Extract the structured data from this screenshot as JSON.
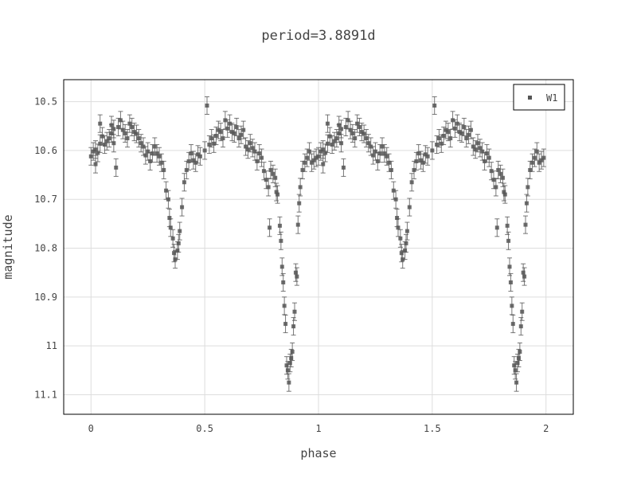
{
  "chart_data": {
    "type": "scatter",
    "title": "period=3.8891d",
    "xlabel": "phase",
    "ylabel": "magnitude",
    "xlim": [
      -0.12,
      2.12
    ],
    "ylim": [
      11.14,
      10.455
    ],
    "y_reversed": true,
    "grid": true,
    "legend_position": "top-right",
    "x_ticks": [
      0,
      0.5,
      1,
      1.5,
      2
    ],
    "x_tick_labels": [
      "0",
      "0.5",
      "1",
      "1.5",
      "2"
    ],
    "y_ticks": [
      10.5,
      10.6,
      10.7,
      10.8,
      10.9,
      11,
      11.1
    ],
    "y_tick_labels": [
      "10.5",
      "10.6",
      "10.7",
      "10.8",
      "10.9",
      "11",
      "11.1"
    ],
    "marker_color": "#555555",
    "series": [
      {
        "name": "W1",
        "error": 0.018,
        "x_repeat_offset": 1,
        "points": [
          [
            0.0,
            10.612
          ],
          [
            0.01,
            10.602
          ],
          [
            0.02,
            10.598
          ],
          [
            0.02,
            10.628
          ],
          [
            0.03,
            10.605
          ],
          [
            0.04,
            10.586
          ],
          [
            0.04,
            10.545
          ],
          [
            0.05,
            10.571
          ],
          [
            0.06,
            10.588
          ],
          [
            0.07,
            10.581
          ],
          [
            0.08,
            10.575
          ],
          [
            0.09,
            10.565
          ],
          [
            0.09,
            10.548
          ],
          [
            0.1,
            10.556
          ],
          [
            0.1,
            10.585
          ],
          [
            0.11,
            10.635
          ],
          [
            0.12,
            10.552
          ],
          [
            0.13,
            10.538
          ],
          [
            0.14,
            10.558
          ],
          [
            0.15,
            10.565
          ],
          [
            0.16,
            10.575
          ],
          [
            0.17,
            10.545
          ],
          [
            0.18,
            10.552
          ],
          [
            0.19,
            10.562
          ],
          [
            0.2,
            10.566
          ],
          [
            0.21,
            10.575
          ],
          [
            0.22,
            10.585
          ],
          [
            0.23,
            10.592
          ],
          [
            0.24,
            10.61
          ],
          [
            0.25,
            10.602
          ],
          [
            0.26,
            10.622
          ],
          [
            0.27,
            10.606
          ],
          [
            0.28,
            10.592
          ],
          [
            0.29,
            10.606
          ],
          [
            0.3,
            10.612
          ],
          [
            0.31,
            10.625
          ],
          [
            0.32,
            10.64
          ],
          [
            0.33,
            10.682
          ],
          [
            0.34,
            10.7
          ],
          [
            0.345,
            10.738
          ],
          [
            0.35,
            10.758
          ],
          [
            0.36,
            10.78
          ],
          [
            0.365,
            10.81
          ],
          [
            0.37,
            10.823
          ],
          [
            0.38,
            10.805
          ],
          [
            0.385,
            10.79
          ],
          [
            0.39,
            10.765
          ],
          [
            0.4,
            10.716
          ],
          [
            0.41,
            10.665
          ],
          [
            0.42,
            10.64
          ],
          [
            0.43,
            10.622
          ],
          [
            0.44,
            10.606
          ],
          [
            0.45,
            10.62
          ],
          [
            0.46,
            10.625
          ],
          [
            0.47,
            10.608
          ],
          [
            0.48,
            10.612
          ],
          [
            0.5,
            10.6
          ],
          [
            0.51,
            10.508
          ],
          [
            0.52,
            10.588
          ],
          [
            0.53,
            10.575
          ],
          [
            0.54,
            10.586
          ],
          [
            0.55,
            10.57
          ],
          [
            0.56,
            10.558
          ],
          [
            0.57,
            10.562
          ],
          [
            0.58,
            10.575
          ],
          [
            0.59,
            10.538
          ],
          [
            0.6,
            10.555
          ],
          [
            0.61,
            10.545
          ],
          [
            0.62,
            10.562
          ],
          [
            0.63,
            10.565
          ],
          [
            0.64,
            10.552
          ],
          [
            0.65,
            10.575
          ],
          [
            0.66,
            10.568
          ],
          [
            0.67,
            10.558
          ],
          [
            0.68,
            10.592
          ],
          [
            0.69,
            10.598
          ],
          [
            0.7,
            10.585
          ],
          [
            0.71,
            10.595
          ],
          [
            0.72,
            10.602
          ],
          [
            0.73,
            10.622
          ],
          [
            0.74,
            10.606
          ],
          [
            0.75,
            10.615
          ],
          [
            0.76,
            10.642
          ],
          [
            0.77,
            10.66
          ],
          [
            0.78,
            10.675
          ],
          [
            0.785,
            10.758
          ],
          [
            0.79,
            10.64
          ],
          [
            0.8,
            10.648
          ],
          [
            0.81,
            10.656
          ],
          [
            0.815,
            10.685
          ],
          [
            0.82,
            10.69
          ],
          [
            0.83,
            10.754
          ],
          [
            0.835,
            10.785
          ],
          [
            0.84,
            10.838
          ],
          [
            0.845,
            10.87
          ],
          [
            0.85,
            10.918
          ],
          [
            0.855,
            10.955
          ],
          [
            0.86,
            11.04
          ],
          [
            0.865,
            11.05
          ],
          [
            0.87,
            11.075
          ],
          [
            0.875,
            11.035
          ],
          [
            0.88,
            11.025
          ],
          [
            0.885,
            11.012
          ],
          [
            0.89,
            10.96
          ],
          [
            0.895,
            10.93
          ],
          [
            0.9,
            10.85
          ],
          [
            0.905,
            10.858
          ],
          [
            0.91,
            10.752
          ],
          [
            0.915,
            10.708
          ],
          [
            0.92,
            10.675
          ],
          [
            0.93,
            10.64
          ],
          [
            0.94,
            10.625
          ],
          [
            0.95,
            10.615
          ],
          [
            0.96,
            10.602
          ],
          [
            0.97,
            10.625
          ],
          [
            0.98,
            10.62
          ],
          [
            0.99,
            10.615
          ]
        ]
      }
    ]
  }
}
